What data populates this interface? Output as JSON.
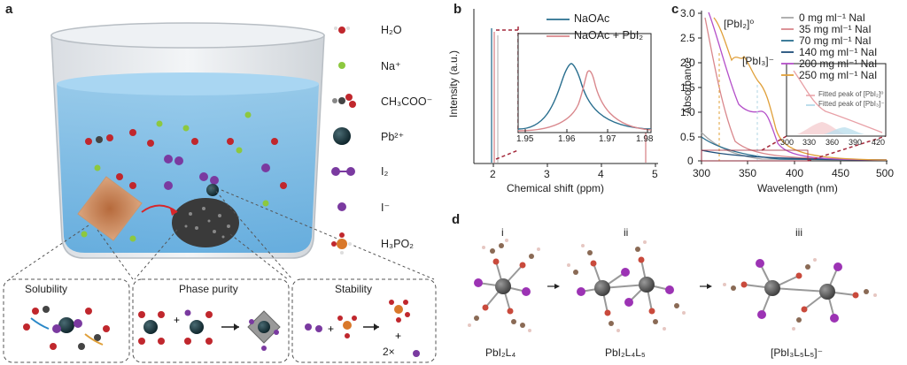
{
  "panels": {
    "a": {
      "label": "a",
      "legend": [
        {
          "formula": "H₂O",
          "atoms": "H2O"
        },
        {
          "formula": "Na⁺",
          "atoms": "Na"
        },
        {
          "formula": "CH₃COO⁻",
          "atoms": "OAc"
        },
        {
          "formula": "Pb²⁺",
          "atoms": "Pb"
        },
        {
          "formula": "I₂",
          "atoms": "I2"
        },
        {
          "formula": "I⁻",
          "atoms": "I"
        },
        {
          "formula": "H₃PO₂",
          "atoms": "H3PO2"
        }
      ],
      "boxes": [
        {
          "title": "Solubility"
        },
        {
          "title": "Phase purity"
        },
        {
          "title": "Stability"
        }
      ],
      "stability_coeff": "2×"
    },
    "b": {
      "label": "b",
      "ylabel": "Intensity (a.u.)",
      "xlabel": "Chemical shift (ppm)",
      "xticks": [
        "2",
        "3",
        "4",
        "5"
      ],
      "inset_xticks": [
        "1.95",
        "1.96",
        "1.97",
        "1.98"
      ],
      "legend": [
        "NaOAc",
        "NaOAc + PbI₂"
      ],
      "colors": {
        "naoac": "#2a6f8f",
        "pbi2": "#d9878c"
      }
    },
    "c": {
      "label": "c",
      "ylabel": "Absorbance",
      "xlabel": "Wavelength (nm)",
      "xticks": [
        "300",
        "350",
        "400",
        "450",
        "500"
      ],
      "yticks": [
        "0",
        "0.5",
        "1.0",
        "1.5",
        "2.0",
        "2.5",
        "3.0"
      ],
      "inset_xticks": [
        "300",
        "330",
        "360",
        "390",
        "420"
      ],
      "annot_pbi2": "[PbI₂]⁰",
      "annot_pbi3": "[PbI₃]⁻",
      "legend": [
        {
          "label": "0 mg ml⁻¹ NaI",
          "color": "#a8a8a8"
        },
        {
          "label": "35 mg ml⁻¹ NaI",
          "color": "#d9878c"
        },
        {
          "label": "70 mg ml⁻¹ NaI",
          "color": "#2a6f8f"
        },
        {
          "label": "140 mg ml⁻¹ NaI",
          "color": "#1f4f7a"
        },
        {
          "label": "200 mg ml⁻¹ NaI",
          "color": "#b44fc9"
        },
        {
          "label": "250 mg ml⁻¹ NaI",
          "color": "#e0a03a"
        }
      ],
      "inset_legend": [
        "Fitted peak of [PbI₂]⁰",
        "Fitted peak of [PbI₃]⁻"
      ]
    },
    "d": {
      "label": "d",
      "structures": [
        {
          "roman": "i",
          "name": "PbI₂L₄"
        },
        {
          "roman": "ii",
          "name": "PbI₂L₄L₅"
        },
        {
          "roman": "iii",
          "name": "[PbI₃L₅L₅]⁻"
        }
      ]
    }
  }
}
